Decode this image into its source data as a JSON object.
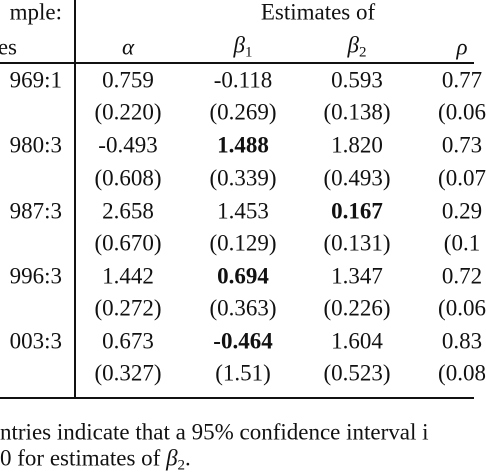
{
  "header": {
    "sample_label": [
      "mple:",
      "es"
    ],
    "group_title": "Estimates of",
    "columns": [
      {
        "symbol": "α"
      },
      {
        "symbol": "β",
        "subscript": "1"
      },
      {
        "symbol": "β",
        "subscript": "2"
      },
      {
        "symbol": "ρ"
      }
    ]
  },
  "table": {
    "rows": [
      [
        "969:1",
        "0.759",
        "-0.118",
        "0.593",
        "0.77"
      ],
      [
        "",
        "(0.220)",
        "(0.269)",
        "(0.138)",
        "(0.06"
      ],
      [
        "980:3",
        "-0.493",
        {
          "text": "1.488",
          "bold": true
        },
        "1.820",
        "0.73"
      ],
      [
        "",
        "(0.608)",
        "(0.339)",
        "(0.493)",
        "(0.07"
      ],
      [
        "987:3",
        "2.658",
        "1.453",
        {
          "text": "0.167",
          "bold": true
        },
        "0.29"
      ],
      [
        "",
        "(0.670)",
        "(0.129)",
        "(0.131)",
        "(0.1"
      ],
      [
        "996:3",
        "1.442",
        {
          "text": "0.694",
          "bold": true
        },
        "1.347",
        "0.72"
      ],
      [
        "",
        "(0.272)",
        "(0.363)",
        "(0.226)",
        "(0.06"
      ],
      [
        "003:3",
        "0.673",
        {
          "text": "-0.464",
          "bold": true
        },
        "1.604",
        "0.83"
      ],
      [
        "",
        "(0.327)",
        "(1.51)",
        "(0.523)",
        "(0.08"
      ]
    ]
  },
  "footnote": {
    "line1": "ntries indicate that a 95% confidence interval i",
    "line2": {
      "before": "0 for estimates of ",
      "symbol": "β",
      "subscript": "2",
      "after": "."
    }
  }
}
